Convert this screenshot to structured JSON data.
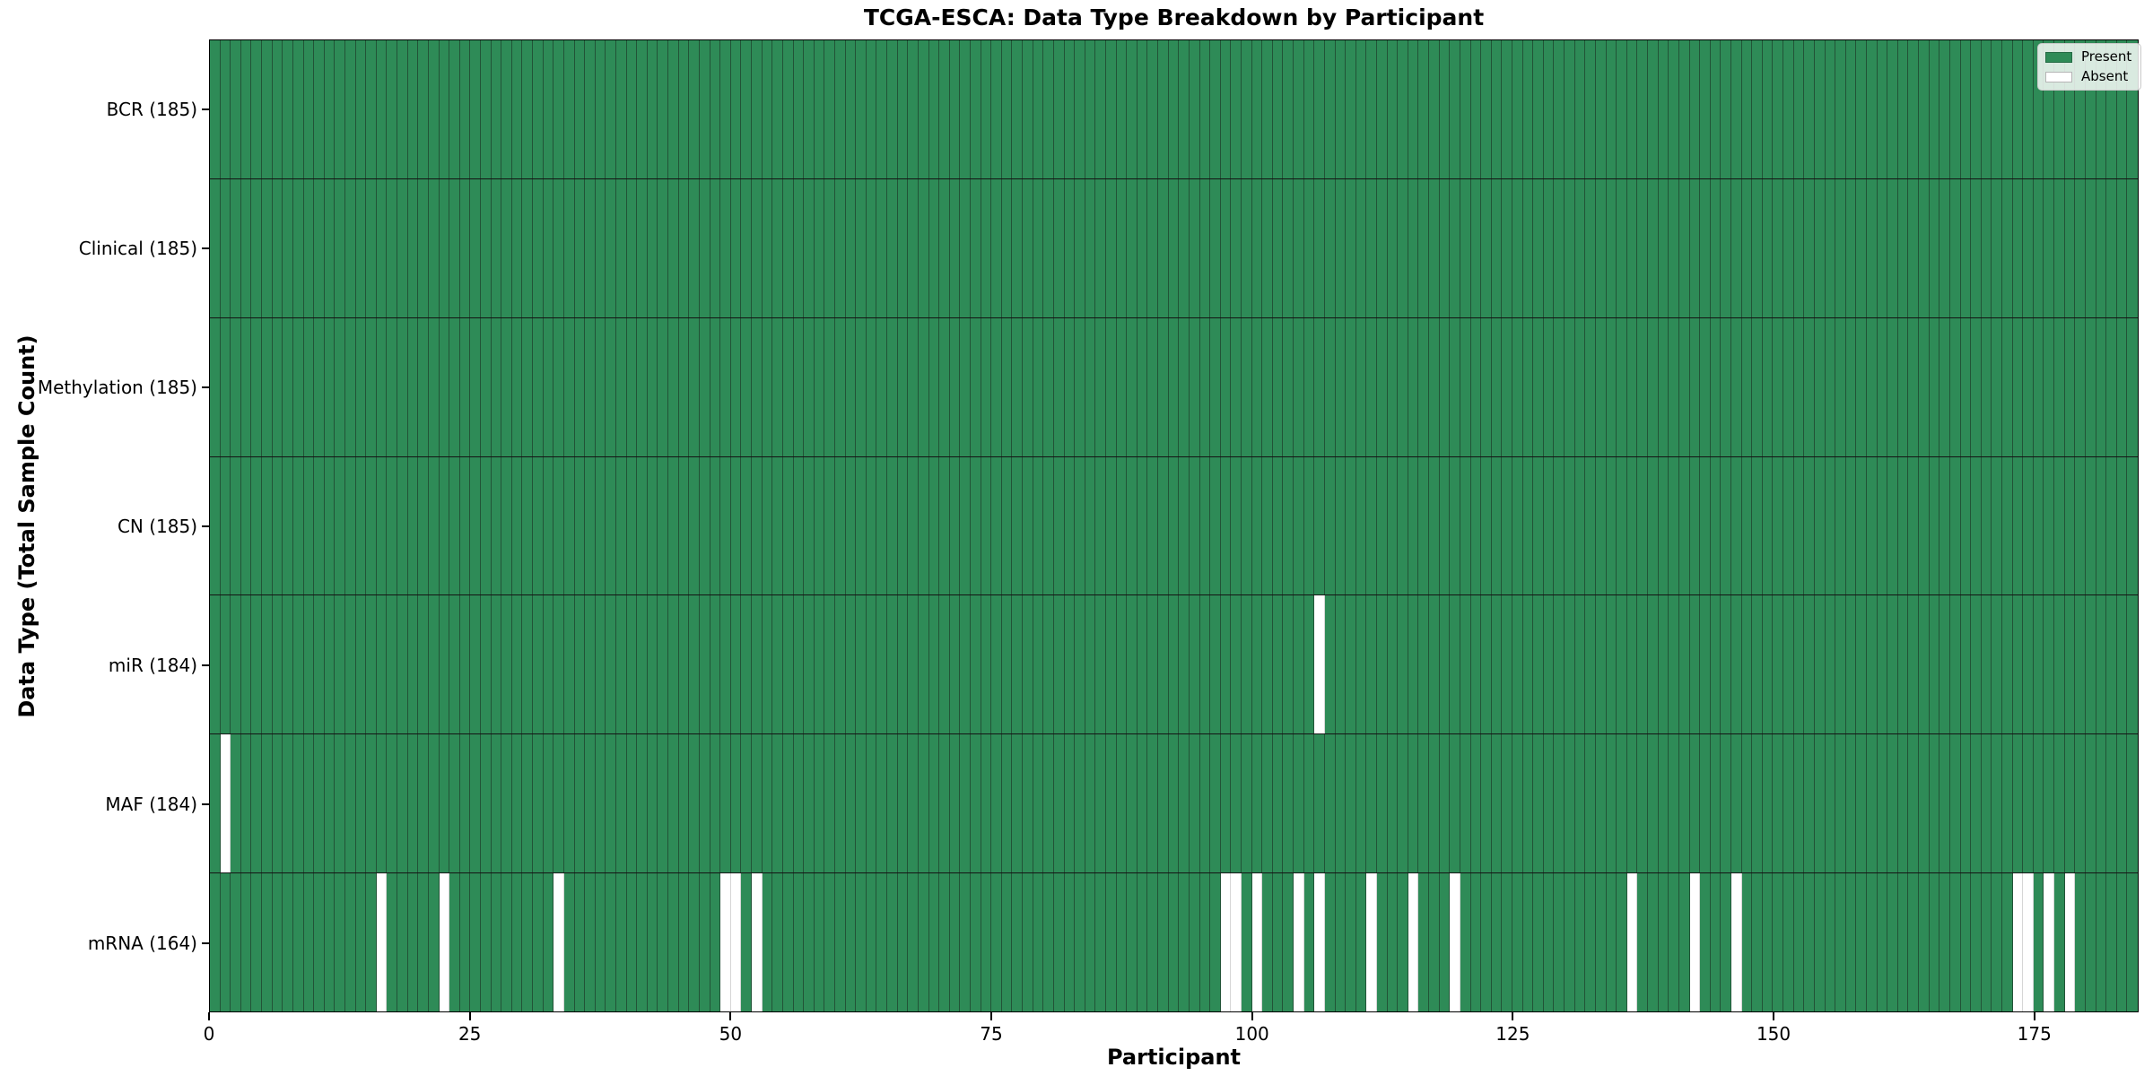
{
  "title": "TCGA-ESCA: Data Type Breakdown by Participant",
  "x_axis": {
    "label": "Participant"
  },
  "y_axis": {
    "label": "Data Type (Total Sample Count)"
  },
  "legend": {
    "present_label": "Present",
    "absent_label": "Absent"
  },
  "colors": {
    "present": "#2e8b57",
    "absent": "#ffffff",
    "cell_edge": "rgba(28,48,36,0.62)",
    "row_divider": "#141414"
  },
  "chart_data": {
    "type": "heatmap",
    "title": "TCGA-ESCA: Data Type Breakdown by Participant",
    "xlabel": "Participant",
    "ylabel": "Data Type (Total Sample Count)",
    "n_participants": 185,
    "x_ticks": [
      0,
      25,
      50,
      75,
      100,
      125,
      150,
      175
    ],
    "xlim": [
      0,
      185
    ],
    "grid": false,
    "legend_position": "upper right",
    "legend_entries": [
      "Present",
      "Absent"
    ],
    "value_encoding": {
      "present": 1,
      "absent": 0
    },
    "rows": [
      {
        "label": "BCR (185)",
        "data_type": "BCR",
        "total_samples": 185,
        "absent_participants": []
      },
      {
        "label": "Clinical (185)",
        "data_type": "Clinical",
        "total_samples": 185,
        "absent_participants": []
      },
      {
        "label": "Methylation (185)",
        "data_type": "Methylation",
        "total_samples": 185,
        "absent_participants": []
      },
      {
        "label": "CN (185)",
        "data_type": "CN",
        "total_samples": 185,
        "absent_participants": []
      },
      {
        "label": "miR (184)",
        "data_type": "miR",
        "total_samples": 184,
        "absent_participants": [
          106
        ]
      },
      {
        "label": "MAF (184)",
        "data_type": "MAF",
        "total_samples": 184,
        "absent_participants": [
          1
        ]
      },
      {
        "label": "mRNA (164)",
        "data_type": "mRNA",
        "total_samples": 164,
        "absent_participants": [
          16,
          22,
          33,
          49,
          50,
          52,
          97,
          98,
          100,
          104,
          106,
          111,
          115,
          119,
          136,
          142,
          146,
          173,
          174,
          176,
          178
        ]
      }
    ]
  }
}
